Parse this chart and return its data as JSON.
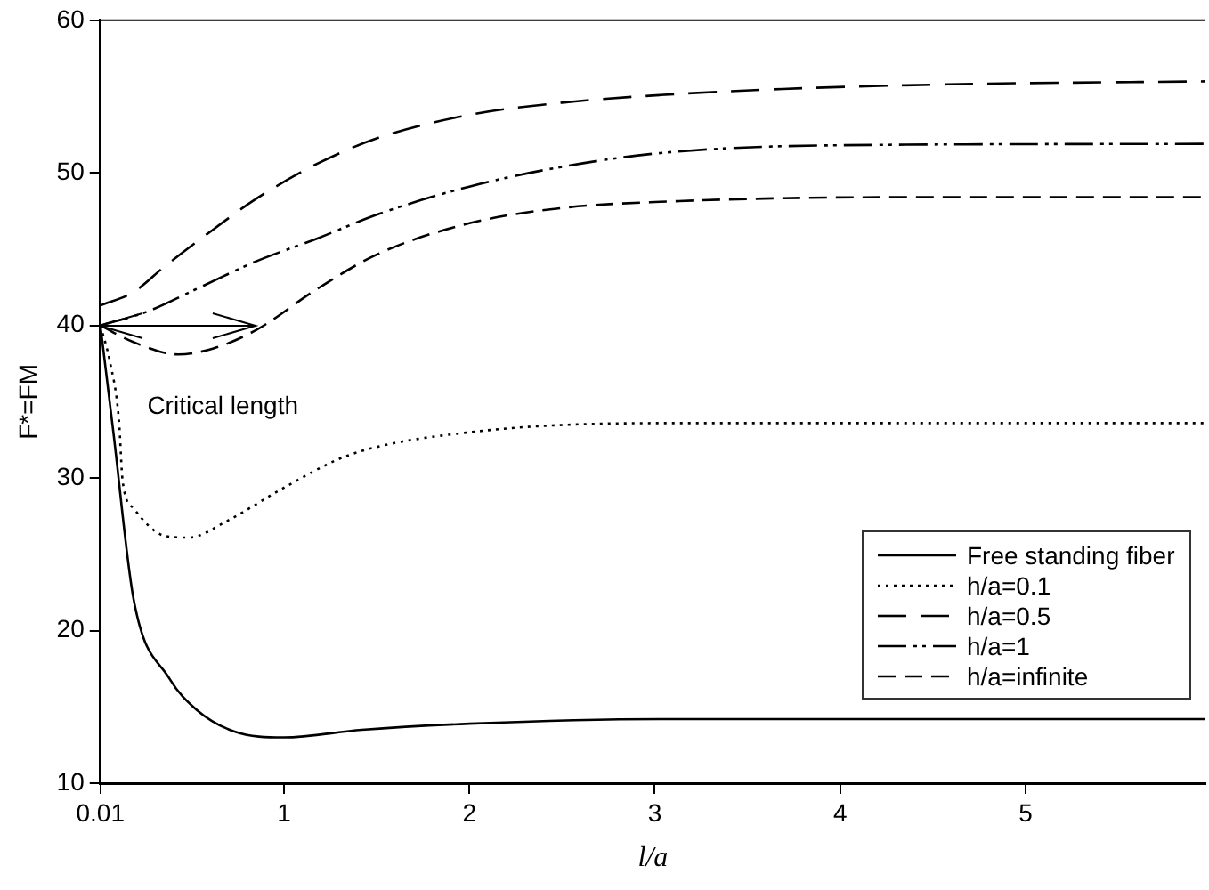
{
  "chart_data": {
    "type": "line",
    "xlabel": "l/a",
    "ylabel": "F*=FM",
    "xlim": [
      0.01,
      5.97
    ],
    "xticks": [
      0.01,
      1,
      2,
      3,
      4,
      5
    ],
    "ylim": [
      10,
      60
    ],
    "yticks": [
      10,
      20,
      30,
      40,
      50,
      60
    ],
    "grid": false,
    "legend": "bottom right",
    "marker": "none",
    "annotations": [
      {
        "text": "Critical length",
        "x": 0.85,
        "y": 40
      }
    ],
    "series": [
      {
        "name": "Free standing fiber",
        "color": "#000000",
        "line_style": "solid",
        "x": [
          0.01,
          0.08,
          0.19,
          0.38,
          0.53,
          0.73,
          1,
          1.42,
          2,
          3.03,
          4,
          5,
          5.97
        ],
        "values": [
          40,
          33,
          22,
          16.9,
          14.8,
          13.4,
          13,
          13.5,
          13.9,
          14.2,
          14.2,
          14.2,
          14.2
        ]
      },
      {
        "name": "h/a=0.1",
        "color": "#000000",
        "line_style": "dotted",
        "x": [
          0.01,
          0.06,
          0.11,
          0.13,
          0.19,
          0.36,
          0.49,
          0.68,
          1.02,
          1.35,
          2,
          3.03,
          4,
          5.97
        ],
        "values": [
          40,
          37.7,
          33.8,
          29.8,
          28,
          26.2,
          26.1,
          27.1,
          29.5,
          31.5,
          33,
          33.6,
          33.6,
          33.6
        ]
      },
      {
        "name": "h/a=0.5",
        "color": "#000000",
        "line_style": "dashed",
        "x": [
          0.01,
          0.19,
          0.36,
          0.62,
          0.85,
          1.18,
          1.51,
          2,
          2.5,
          3.03,
          3.69,
          4.58,
          5.97
        ],
        "values": [
          41.3,
          42.2,
          43.9,
          46.3,
          48.3,
          50.6,
          52.3,
          53.8,
          54.6,
          55.1,
          55.5,
          55.8,
          56
        ]
      },
      {
        "name": "h/a=1",
        "color": "#000000",
        "line_style": "dashed",
        "x": [
          0.01,
          0.26,
          0.53,
          0.85,
          1.18,
          1.51,
          2,
          2.5,
          3.03,
          3.92,
          5.97
        ],
        "values": [
          40,
          40.9,
          42.4,
          44.2,
          45.7,
          47.3,
          49.1,
          50.4,
          51.3,
          51.8,
          51.9
        ]
      },
      {
        "name": "h/a=infinite",
        "color": "#000000",
        "line_style": "dashed",
        "x": [
          0.01,
          0.19,
          0.43,
          0.62,
          0.85,
          1.18,
          1.51,
          2,
          2.5,
          3.03,
          4.24,
          5.97
        ],
        "values": [
          40,
          38.9,
          38.1,
          38.5,
          39.7,
          42.4,
          44.7,
          46.7,
          47.7,
          48.1,
          48.4,
          48.4
        ]
      }
    ]
  }
}
